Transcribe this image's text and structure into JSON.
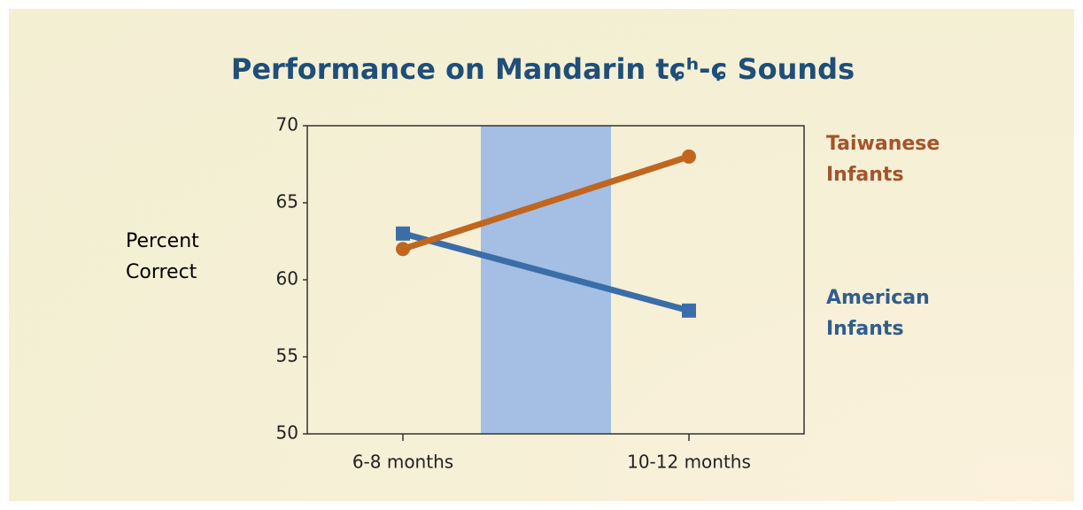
{
  "chart_data": {
    "type": "line",
    "title": "Performance on Mandarin tɕʰ-ɕ Sounds",
    "y_label": "Percent Correct",
    "categories": [
      "6-8 months",
      "10-12 months"
    ],
    "series": [
      {
        "name": "American Infants",
        "color": "#3b6ea8",
        "label_color": "#2f5d8f",
        "marker": "square",
        "values": [
          63,
          58
        ]
      },
      {
        "name": "Taiwanese Infants",
        "color": "#c0661f",
        "label_color": "#a4542a",
        "marker": "circle",
        "values": [
          62,
          68
        ]
      }
    ],
    "ylim": [
      50,
      70
    ],
    "yticks": [
      50,
      55,
      60,
      65,
      70
    ]
  }
}
